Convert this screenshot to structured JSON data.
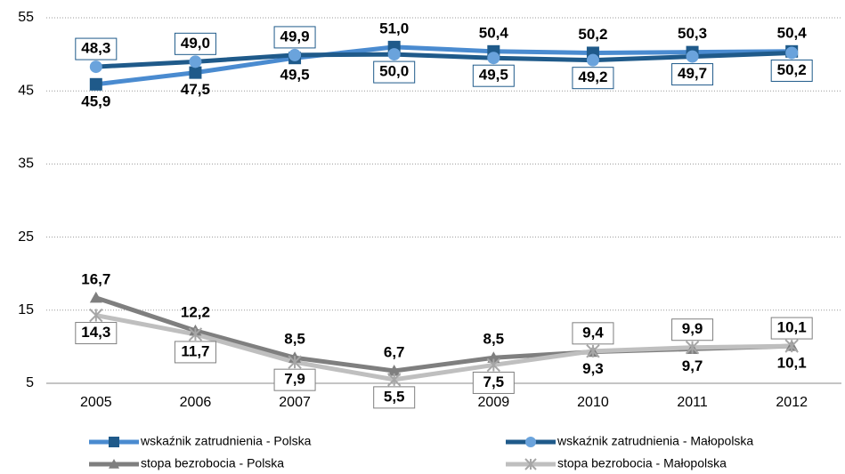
{
  "chart_data": {
    "type": "line",
    "categories": [
      "2005",
      "2006",
      "2007",
      "2008",
      "2009",
      "2010",
      "2011",
      "2012"
    ],
    "series": [
      {
        "name": "wskaźnik zatrudnienia - Polska",
        "color": "#4a8bd0",
        "marker": "square",
        "values": [
          45.9,
          47.5,
          49.5,
          51.0,
          50.4,
          50.2,
          50.3,
          50.4
        ],
        "value_labels": [
          "45,9",
          "47,5",
          "49,5",
          "51,0",
          "50,4",
          "50,2",
          "50,3",
          "50,4"
        ]
      },
      {
        "name": "wskaźnik zatrudnienia - Małopolska",
        "color": "#1f5a8a",
        "marker": "circle",
        "values": [
          48.3,
          49.0,
          49.9,
          50.0,
          49.5,
          49.2,
          49.7,
          50.2
        ],
        "value_labels": [
          "48,3",
          "49,0",
          "49,9",
          "50,0",
          "49,5",
          "49,2",
          "49,7",
          "50,2"
        ]
      },
      {
        "name": "stopa bezrobocia - Polska",
        "color": "#7f7f7f",
        "marker": "triangle",
        "values": [
          16.7,
          12.2,
          8.5,
          6.7,
          8.5,
          9.3,
          9.7,
          10.1
        ],
        "value_labels": [
          "16,7",
          "12,2",
          "8,5",
          "6,7",
          "8,5",
          "9,3",
          "9,7",
          "10,1"
        ]
      },
      {
        "name": "stopa bezrobocia - Małopolska",
        "color": "#bfbfbf",
        "marker": "star",
        "values": [
          14.3,
          11.7,
          7.9,
          5.5,
          7.5,
          9.4,
          9.9,
          10.1
        ],
        "value_labels": [
          "14,3",
          "11,7",
          "7,9",
          "5,5",
          "7,5",
          "9,4",
          "9,9",
          "10,1"
        ]
      }
    ],
    "ylim": [
      5,
      55
    ],
    "yticks": [
      5,
      15,
      25,
      35,
      45,
      55
    ],
    "grid": true
  }
}
